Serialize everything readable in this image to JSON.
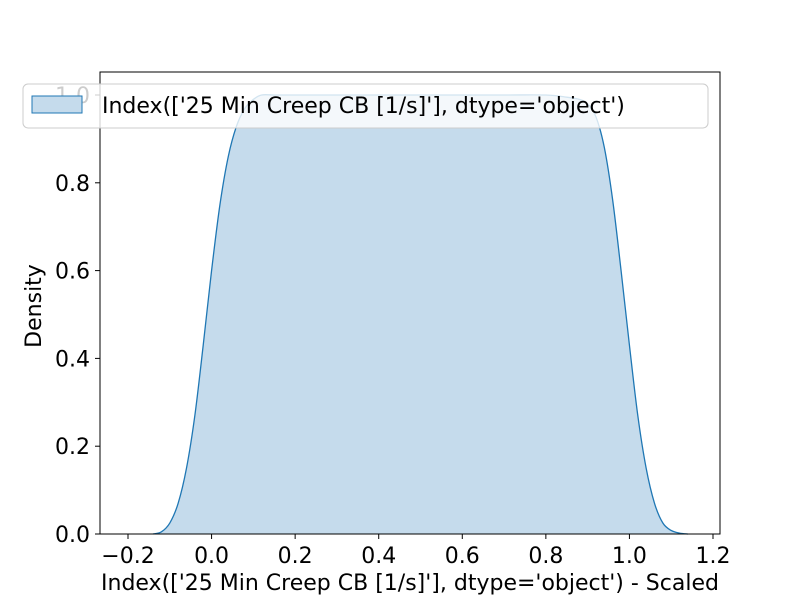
{
  "chart_data": {
    "type": "area",
    "xlabel": "Index(['25 Min Creep CB [1/s]'], dtype='object') - Scaled",
    "ylabel": "Density",
    "xlim": [
      -0.2,
      1.2
    ],
    "ylim": [
      0.0,
      1.0
    ],
    "x_ticks": [
      -0.2,
      0.0,
      0.2,
      0.4,
      0.6,
      0.8,
      1.0,
      1.2
    ],
    "x_tick_labels": [
      "−0.2",
      "0.0",
      "0.2",
      "0.4",
      "0.6",
      "0.8",
      "1.0",
      "1.2"
    ],
    "y_ticks": [
      0.0,
      0.2,
      0.4,
      0.6,
      0.8,
      1.0
    ],
    "y_tick_labels": [
      "0.0",
      "0.2",
      "0.4",
      "0.6",
      "0.8",
      "1.0"
    ],
    "grid": false,
    "legend_position": "top",
    "series": [
      {
        "name": "Index(['25 Min Creep CB [1/s]'], dtype='object')",
        "color": "#1f77b4",
        "fill_color": "#c5dbec",
        "x": [
          -0.14,
          -0.12,
          -0.1,
          -0.08,
          -0.06,
          -0.04,
          -0.02,
          0.0,
          0.02,
          0.04,
          0.06,
          0.08,
          0.1,
          0.12,
          0.15,
          0.2,
          0.3,
          0.4,
          0.5,
          0.6,
          0.7,
          0.8,
          0.85,
          0.88,
          0.9,
          0.92,
          0.94,
          0.96,
          0.98,
          1.0,
          1.02,
          1.04,
          1.06,
          1.08,
          1.1,
          1.12,
          1.14
        ],
        "y": [
          0.0,
          0.005,
          0.025,
          0.07,
          0.15,
          0.27,
          0.43,
          0.6,
          0.75,
          0.86,
          0.93,
          0.97,
          0.99,
          1.0,
          1.0,
          1.0,
          1.0,
          1.0,
          1.0,
          1.0,
          1.0,
          1.0,
          0.995,
          0.99,
          0.98,
          0.95,
          0.88,
          0.76,
          0.6,
          0.43,
          0.27,
          0.15,
          0.07,
          0.025,
          0.008,
          0.002,
          0.0
        ]
      }
    ]
  }
}
